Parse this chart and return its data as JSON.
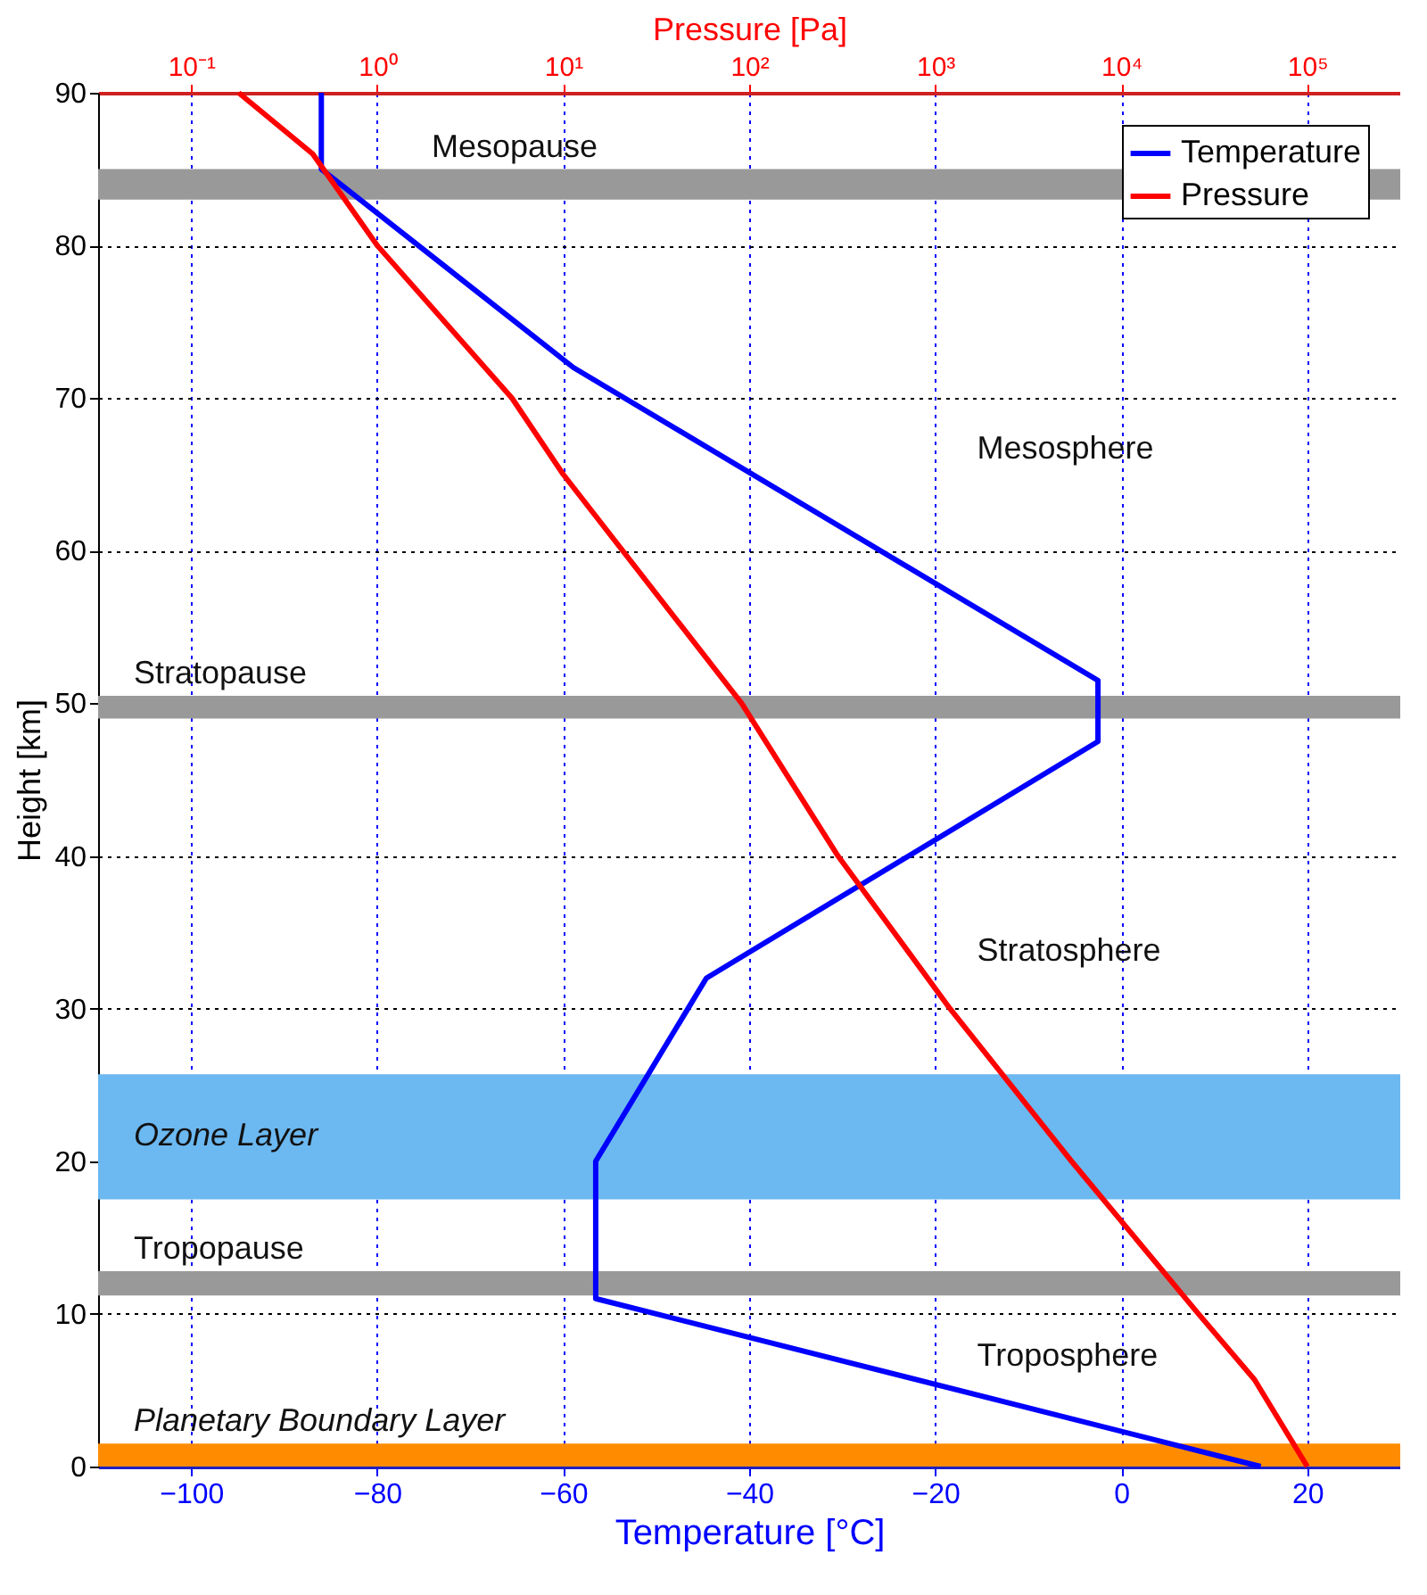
{
  "chart_data": {
    "type": "line",
    "xlabel": "Temperature [°C]",
    "ylabel": "Height [km]",
    "x2label": "Pressure [Pa]",
    "series": [
      {
        "name": "Temperature",
        "color": "#0000ff",
        "x": [
          15,
          -56.5,
          -56.5,
          -44.6,
          -2.5,
          -2.5,
          -58.9,
          -86,
          -86
        ],
        "values": [
          0,
          11,
          20,
          32,
          47.5,
          51.5,
          72,
          85,
          90
        ]
      },
      {
        "name": "Pressure",
        "color": "#ff0000",
        "axis": "x2",
        "x": [
          100000,
          52000,
          26000,
          5400,
          1200,
          300,
          91,
          10,
          5.3,
          1,
          0.45,
          0.18
        ],
        "values": [
          0,
          5.7,
          10,
          20,
          30,
          40,
          50,
          65,
          70,
          80,
          86,
          90
        ]
      }
    ],
    "xlim": [
      -110,
      30
    ],
    "xticks": [
      -100,
      -80,
      -60,
      -40,
      -20,
      0,
      20
    ],
    "ylim": [
      0,
      90
    ],
    "yticks": [
      0,
      10,
      20,
      30,
      40,
      50,
      60,
      70,
      80,
      90
    ],
    "x2lim": [
      0.0316,
      316000
    ],
    "x2ticks": [
      {
        "value": 0.1,
        "label": "10⁻¹"
      },
      {
        "value": 1,
        "label": "10⁰"
      },
      {
        "value": 10,
        "label": "10¹"
      },
      {
        "value": 100,
        "label": "10²"
      },
      {
        "value": 1000,
        "label": "10³"
      },
      {
        "value": 10000,
        "label": "10⁴"
      },
      {
        "value": 100000,
        "label": "10⁵"
      }
    ],
    "log": "x2",
    "grid": true,
    "legend": "top right",
    "bands": [
      {
        "axis": "y",
        "from": 83,
        "to": 85,
        "color": "#999999",
        "label": "Mesopause"
      },
      {
        "axis": "y",
        "from": 49,
        "to": 50.5,
        "color": "#999999",
        "label": "Stratopause"
      },
      {
        "axis": "y",
        "from": 11.2,
        "to": 12.8,
        "color": "#999999",
        "label": "Tropopause"
      },
      {
        "axis": "y",
        "from": 17.5,
        "to": 25.7,
        "color": "#6cb8f0",
        "label": "Ozone Layer"
      },
      {
        "axis": "y",
        "from": 0,
        "to": 1.5,
        "color": "#ff8c00",
        "label": "Planetary Boundary Layer"
      }
    ],
    "annotations": [
      "Mesosphere",
      "Stratosphere",
      "Troposphere"
    ]
  }
}
